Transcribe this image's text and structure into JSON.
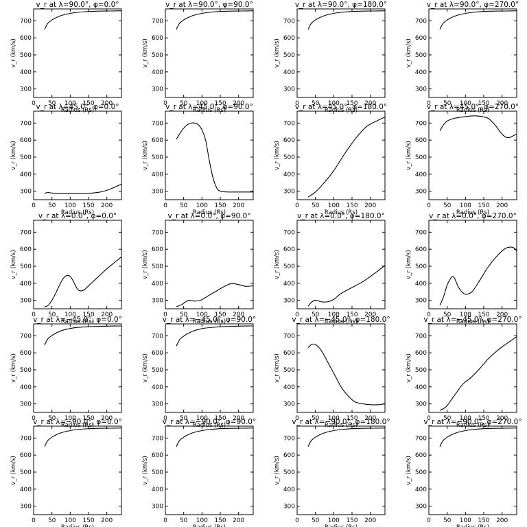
{
  "chart_data": [
    {
      "type": "line",
      "title": "v_r at λ=90.0°, φ=0.0°",
      "xlabel": "Radius (Rs)",
      "ylabel": "v_r (km/s)",
      "xlim": [
        0,
        240
      ],
      "ylim": [
        250,
        770
      ],
      "xticks": [
        0,
        50,
        100,
        150,
        200
      ],
      "yticks": [
        300,
        400,
        500,
        600,
        700
      ],
      "x": [
        30,
        35,
        40,
        50,
        60,
        70,
        80,
        100,
        120,
        150,
        180,
        210,
        240
      ],
      "y": [
        650,
        672,
        688,
        705,
        717,
        727,
        734,
        744,
        750,
        755,
        757,
        758,
        759
      ]
    },
    {
      "type": "line",
      "title": "v_r at λ=90.0°, φ=90.0°",
      "xlabel": "Radius (Rs)",
      "ylabel": "v_r (km/s)",
      "xlim": [
        0,
        240
      ],
      "ylim": [
        250,
        770
      ],
      "xticks": [
        0,
        50,
        100,
        150,
        200
      ],
      "yticks": [
        300,
        400,
        500,
        600,
        700
      ],
      "x": [
        30,
        35,
        40,
        50,
        60,
        70,
        80,
        100,
        120,
        150,
        180,
        210,
        240
      ],
      "y": [
        650,
        672,
        688,
        705,
        717,
        727,
        734,
        744,
        750,
        755,
        757,
        758,
        759
      ]
    },
    {
      "type": "line",
      "title": "v_r at λ=90.0°, φ=180.0°",
      "xlabel": "Radius (Rs)",
      "ylabel": "v_r (km/s)",
      "xlim": [
        0,
        240
      ],
      "ylim": [
        250,
        770
      ],
      "xticks": [
        0,
        50,
        100,
        150,
        200
      ],
      "yticks": [
        300,
        400,
        500,
        600,
        700
      ],
      "x": [
        30,
        35,
        40,
        50,
        60,
        70,
        80,
        100,
        120,
        150,
        180,
        210,
        240
      ],
      "y": [
        650,
        672,
        688,
        705,
        717,
        727,
        734,
        744,
        750,
        755,
        757,
        758,
        759
      ]
    },
    {
      "type": "line",
      "title": "v_r at λ=90.0°, φ=270.0°",
      "xlabel": "Radius (Rs)",
      "ylabel": "v_r (km/s)",
      "xlim": [
        0,
        240
      ],
      "ylim": [
        250,
        770
      ],
      "xticks": [
        0,
        50,
        100,
        150,
        200
      ],
      "yticks": [
        300,
        400,
        500,
        600,
        700
      ],
      "x": [
        30,
        35,
        40,
        50,
        60,
        70,
        80,
        100,
        120,
        150,
        180,
        210,
        240
      ],
      "y": [
        650,
        672,
        688,
        705,
        717,
        727,
        734,
        744,
        750,
        755,
        757,
        758,
        759
      ]
    },
    {
      "type": "line",
      "title": "v_r at λ=45.0°, φ=0.0°",
      "xlabel": "Radius (Rs)",
      "ylabel": "v_r (km/s)",
      "xlim": [
        0,
        240
      ],
      "ylim": [
        250,
        770
      ],
      "xticks": [
        0,
        50,
        100,
        150,
        200
      ],
      "yticks": [
        300,
        400,
        500,
        600,
        700
      ],
      "x": [
        30,
        40,
        50,
        70,
        100,
        130,
        160,
        180,
        200,
        220,
        240
      ],
      "y": [
        288,
        292,
        289,
        288,
        288,
        288,
        289,
        294,
        305,
        322,
        342
      ]
    },
    {
      "type": "line",
      "title": "v_r at λ=45.0°, φ=90.0°",
      "xlabel": "Radius (Rs)",
      "ylabel": "v_r (km/s)",
      "xlim": [
        0,
        240
      ],
      "ylim": [
        250,
        770
      ],
      "xticks": [
        0,
        50,
        100,
        150,
        200
      ],
      "yticks": [
        300,
        400,
        500,
        600,
        700
      ],
      "x": [
        30,
        40,
        50,
        60,
        70,
        80,
        90,
        100,
        110,
        120,
        130,
        140,
        150,
        170,
        200,
        240
      ],
      "y": [
        605,
        640,
        670,
        690,
        700,
        700,
        690,
        660,
        600,
        480,
        380,
        320,
        300,
        295,
        295,
        295
      ]
    },
    {
      "type": "line",
      "title": "v_r at λ=45.0°, φ=180.0°",
      "xlabel": "Radius (Rs)",
      "ylabel": "v_r (km/s)",
      "xlim": [
        0,
        240
      ],
      "ylim": [
        250,
        770
      ],
      "xticks": [
        0,
        50,
        100,
        150,
        200
      ],
      "yticks": [
        300,
        400,
        500,
        600,
        700
      ],
      "x": [
        30,
        50,
        70,
        100,
        130,
        160,
        190,
        220,
        240
      ],
      "y": [
        265,
        295,
        340,
        420,
        520,
        610,
        680,
        715,
        735
      ]
    },
    {
      "type": "line",
      "title": "v_r at λ=45.0°, φ=270.0°",
      "xlabel": "Radius (Rs)",
      "ylabel": "v_r (km/s)",
      "xlim": [
        0,
        240
      ],
      "ylim": [
        250,
        770
      ],
      "xticks": [
        0,
        50,
        100,
        150,
        200
      ],
      "yticks": [
        300,
        400,
        500,
        600,
        700
      ],
      "x": [
        30,
        40,
        50,
        70,
        100,
        130,
        160,
        180,
        200,
        210,
        220,
        230,
        240
      ],
      "y": [
        655,
        690,
        712,
        728,
        738,
        742,
        730,
        690,
        635,
        618,
        615,
        625,
        635
      ]
    },
    {
      "type": "line",
      "title": "v_r at λ=0.0°, φ=0.0°",
      "xlabel": "Radius (Rs)",
      "ylabel": "v_r (km/s)",
      "xlim": [
        0,
        240
      ],
      "ylim": [
        250,
        770
      ],
      "xticks": [
        0,
        50,
        100,
        150,
        200
      ],
      "yticks": [
        300,
        400,
        500,
        600,
        700
      ],
      "x": [
        30,
        40,
        50,
        60,
        70,
        80,
        90,
        100,
        110,
        120,
        130,
        140,
        160,
        180,
        200,
        220,
        240
      ],
      "y": [
        262,
        270,
        300,
        340,
        385,
        425,
        445,
        440,
        405,
        365,
        355,
        365,
        405,
        445,
        485,
        520,
        555
      ]
    },
    {
      "type": "line",
      "title": "v_r at λ=0.0°, φ=90.0°",
      "xlabel": "Radius (Rs)",
      "ylabel": "v_r (km/s)",
      "xlim": [
        0,
        240
      ],
      "ylim": [
        250,
        770
      ],
      "xticks": [
        0,
        50,
        100,
        150,
        200
      ],
      "yticks": [
        300,
        400,
        500,
        600,
        700
      ],
      "x": [
        30,
        45,
        55,
        65,
        80,
        95,
        105,
        120,
        140,
        160,
        180,
        200,
        220,
        240
      ],
      "y": [
        262,
        275,
        290,
        300,
        295,
        300,
        310,
        330,
        355,
        380,
        398,
        392,
        382,
        385
      ]
    },
    {
      "type": "line",
      "title": "v_r at λ=0.0°, φ=180.0°",
      "xlabel": "Radius (Rs)",
      "ylabel": "v_r (km/s)",
      "xlim": [
        0,
        240
      ],
      "ylim": [
        250,
        770
      ],
      "xticks": [
        0,
        50,
        100,
        150,
        200
      ],
      "yticks": [
        300,
        400,
        500,
        600,
        700
      ],
      "x": [
        30,
        40,
        50,
        60,
        70,
        85,
        100,
        120,
        150,
        180,
        210,
        240
      ],
      "y": [
        265,
        290,
        300,
        295,
        290,
        292,
        305,
        340,
        375,
        410,
        455,
        505
      ]
    },
    {
      "type": "line",
      "title": "v_r at λ=0.0°, φ=270.0°",
      "xlabel": "Radius (Rs)",
      "ylabel": "v_r (km/s)",
      "xlim": [
        0,
        240
      ],
      "ylim": [
        250,
        770
      ],
      "xticks": [
        0,
        50,
        100,
        150,
        200
      ],
      "yticks": [
        300,
        400,
        500,
        600,
        700
      ],
      "x": [
        30,
        40,
        50,
        60,
        65,
        70,
        80,
        90,
        100,
        110,
        120,
        140,
        160,
        180,
        200,
        215,
        230,
        240
      ],
      "y": [
        270,
        320,
        390,
        430,
        440,
        430,
        380,
        350,
        335,
        340,
        355,
        420,
        490,
        545,
        590,
        610,
        610,
        590
      ]
    },
    {
      "type": "line",
      "title": "v_r at λ=−45.0°, φ=0.0°",
      "xlabel": "Radius (Rs)",
      "ylabel": "v_r (km/s)",
      "xlim": [
        0,
        240
      ],
      "ylim": [
        250,
        770
      ],
      "xticks": [
        0,
        50,
        100,
        150,
        200
      ],
      "yticks": [
        300,
        400,
        500,
        600,
        700
      ],
      "x": [
        30,
        35,
        40,
        50,
        60,
        70,
        80,
        100,
        120,
        150,
        180,
        210,
        240
      ],
      "y": [
        645,
        668,
        684,
        702,
        715,
        725,
        733,
        743,
        749,
        754,
        756,
        757,
        758
      ]
    },
    {
      "type": "line",
      "title": "v_r at λ=−45.0°, φ=90.0°",
      "xlabel": "Radius (Rs)",
      "ylabel": "v_r (km/s)",
      "xlim": [
        0,
        240
      ],
      "ylim": [
        250,
        770
      ],
      "xticks": [
        0,
        50,
        100,
        150,
        200
      ],
      "yticks": [
        300,
        400,
        500,
        600,
        700
      ],
      "x": [
        30,
        35,
        40,
        50,
        60,
        70,
        80,
        100,
        120,
        150,
        180,
        210,
        240
      ],
      "y": [
        640,
        662,
        680,
        698,
        712,
        722,
        731,
        742,
        748,
        753,
        756,
        757,
        758
      ]
    },
    {
      "type": "line",
      "title": "v_r at λ=−45.0°, φ=180.0°",
      "xlabel": "Radius (Rs)",
      "ylabel": "v_r (km/s)",
      "xlim": [
        0,
        240
      ],
      "ylim": [
        250,
        770
      ],
      "xticks": [
        0,
        50,
        100,
        150,
        200
      ],
      "yticks": [
        300,
        400,
        500,
        600,
        700
      ],
      "x": [
        30,
        40,
        50,
        60,
        70,
        80,
        90,
        100,
        110,
        120,
        130,
        140,
        150,
        160,
        180,
        200,
        220,
        240
      ],
      "y": [
        630,
        650,
        648,
        630,
        600,
        560,
        520,
        480,
        440,
        400,
        370,
        345,
        325,
        310,
        300,
        295,
        295,
        300
      ]
    },
    {
      "type": "line",
      "title": "v_r at λ=−45.0°, φ=270.0°",
      "xlabel": "Radius (Rs)",
      "ylabel": "v_r (km/s)",
      "xlim": [
        0,
        240
      ],
      "ylim": [
        250,
        770
      ],
      "xticks": [
        0,
        50,
        100,
        150,
        200
      ],
      "yticks": [
        300,
        400,
        500,
        600,
        700
      ],
      "x": [
        30,
        40,
        50,
        60,
        70,
        80,
        90,
        100,
        110,
        120,
        140,
        160,
        180,
        200,
        220,
        240
      ],
      "y": [
        262,
        272,
        290,
        320,
        350,
        380,
        410,
        430,
        445,
        465,
        510,
        560,
        600,
        635,
        665,
        695
      ]
    },
    {
      "type": "line",
      "title": "v_r at λ=−90.0°, φ=0.0°",
      "xlabel": "Radius (Rs)",
      "ylabel": "v_r (km/s)",
      "xlim": [
        0,
        240
      ],
      "ylim": [
        250,
        770
      ],
      "xticks": [
        0,
        50,
        100,
        150,
        200
      ],
      "yticks": [
        300,
        400,
        500,
        600,
        700
      ],
      "x": [
        30,
        35,
        40,
        50,
        60,
        70,
        80,
        100,
        120,
        150,
        180,
        210,
        240
      ],
      "y": [
        650,
        672,
        688,
        705,
        717,
        727,
        734,
        744,
        750,
        755,
        757,
        758,
        759
      ]
    },
    {
      "type": "line",
      "title": "v_r at λ=−90.0°, φ=90.0°",
      "xlabel": "Radius (Rs)",
      "ylabel": "v_r (km/s)",
      "xlim": [
        0,
        240
      ],
      "ylim": [
        250,
        770
      ],
      "xticks": [
        0,
        50,
        100,
        150,
        200
      ],
      "yticks": [
        300,
        400,
        500,
        600,
        700
      ],
      "x": [
        30,
        35,
        40,
        50,
        60,
        70,
        80,
        100,
        120,
        150,
        180,
        210,
        240
      ],
      "y": [
        650,
        672,
        688,
        705,
        717,
        727,
        734,
        744,
        750,
        755,
        757,
        758,
        759
      ]
    },
    {
      "type": "line",
      "title": "v_r at λ=−90.0°, φ=180.0°",
      "xlabel": "Radius (Rs)",
      "ylabel": "v_r (km/s)",
      "xlim": [
        0,
        240
      ],
      "ylim": [
        250,
        770
      ],
      "xticks": [
        0,
        50,
        100,
        150,
        200
      ],
      "yticks": [
        300,
        400,
        500,
        600,
        700
      ],
      "x": [
        30,
        35,
        40,
        50,
        60,
        70,
        80,
        100,
        120,
        150,
        180,
        210,
        240
      ],
      "y": [
        650,
        672,
        688,
        705,
        717,
        727,
        734,
        744,
        750,
        755,
        757,
        758,
        759
      ]
    },
    {
      "type": "line",
      "title": "v_r at λ=−90.0°, φ=270.0°",
      "xlabel": "Radius (Rs)",
      "ylabel": "v_r (km/s)",
      "xlim": [
        0,
        240
      ],
      "ylim": [
        250,
        770
      ],
      "xticks": [
        0,
        50,
        100,
        150,
        200
      ],
      "yticks": [
        300,
        400,
        500,
        600,
        700
      ],
      "x": [
        30,
        35,
        40,
        50,
        60,
        70,
        80,
        100,
        120,
        150,
        180,
        210,
        240
      ],
      "y": [
        650,
        672,
        688,
        705,
        717,
        727,
        734,
        744,
        750,
        755,
        757,
        758,
        759
      ]
    }
  ]
}
